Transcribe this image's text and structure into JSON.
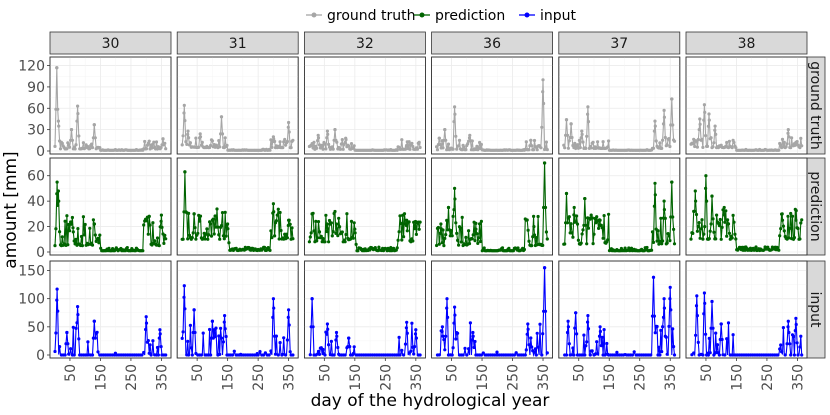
{
  "chart_data": {
    "type": "line",
    "title": "",
    "xlabel": "day of the hydrological year",
    "ylabel": "amount [mm]",
    "xlim": [
      1,
      365
    ],
    "x_ticks": [
      50,
      150,
      250,
      350
    ],
    "columns": [
      "30",
      "31",
      "32",
      "36",
      "37",
      "38"
    ],
    "rows": [
      {
        "name": "ground truth",
        "ylim": [
          0,
          125
        ],
        "y_ticks": [
          0,
          30,
          60,
          90,
          120
        ]
      },
      {
        "name": "prediction",
        "ylim": [
          0,
          70
        ],
        "y_ticks": [
          0,
          20,
          40,
          60
        ]
      },
      {
        "name": "input",
        "ylim": [
          0,
          158
        ],
        "y_ticks": [
          0,
          50,
          100,
          150
        ]
      }
    ],
    "legend": {
      "position": "top",
      "entries": [
        {
          "label": "ground truth",
          "color": "#a6a6a6"
        },
        {
          "label": "prediction",
          "color": "#006400"
        },
        {
          "label": "input",
          "color": "#0000ff"
        }
      ]
    },
    "series_shape": {
      "ground truth": {
        "30": {
          "peaks": [
            [
              7,
              117
            ],
            [
              12,
              42
            ],
            [
              55,
              30
            ],
            [
              75,
              63
            ],
            [
              130,
              37
            ],
            [
              320,
              5
            ],
            [
              355,
              17
            ]
          ],
          "base": 5
        },
        "31": {
          "peaks": [
            [
              8,
              64
            ],
            [
              20,
              28
            ],
            [
              60,
              24
            ],
            [
              130,
              48
            ],
            [
              300,
              20
            ],
            [
              350,
              40
            ]
          ],
          "base": 8
        },
        "32": {
          "peaks": [
            [
              30,
              22
            ],
            [
              60,
              28
            ],
            [
              85,
              30
            ],
            [
              120,
              18
            ],
            [
              320,
              8
            ],
            [
              360,
              10
            ]
          ],
          "base": 4
        },
        "36": {
          "peaks": [
            [
              10,
              18
            ],
            [
              28,
              30
            ],
            [
              60,
              62
            ],
            [
              110,
              22
            ],
            [
              310,
              15
            ],
            [
              350,
              100
            ]
          ],
          "base": 3
        },
        "37": {
          "peaks": [
            [
              10,
              44
            ],
            [
              25,
              38
            ],
            [
              60,
              28
            ],
            [
              80,
              62
            ],
            [
              300,
              42
            ],
            [
              330,
              57
            ],
            [
              355,
              73
            ]
          ],
          "base": 6
        },
        "38": {
          "peaks": [
            [
              30,
              45
            ],
            [
              45,
              65
            ],
            [
              60,
              52
            ],
            [
              80,
              35
            ],
            [
              320,
              30
            ],
            [
              345,
              12
            ]
          ],
          "base": 8
        }
      },
      "prediction": {
        "30": {
          "peaks": [
            [
              8,
              55
            ],
            [
              12,
              48
            ],
            [
              60,
              19
            ],
            [
              130,
              22
            ],
            [
              310,
              28
            ],
            [
              350,
              29
            ]
          ],
          "base": 5
        },
        "31": {
          "peaks": [
            [
              10,
              63
            ],
            [
              40,
              30
            ],
            [
              100,
              25
            ],
            [
              150,
              22
            ],
            [
              300,
              38
            ],
            [
              350,
              25
            ]
          ],
          "base": 10
        },
        "32": {
          "peaks": [
            [
              10,
              30
            ],
            [
              60,
              22
            ],
            [
              90,
              22
            ],
            [
              150,
              18
            ],
            [
              320,
              25
            ],
            [
              350,
              20
            ]
          ],
          "base": 8
        },
        "36": {
          "peaks": [
            [
              15,
              22
            ],
            [
              40,
              35
            ],
            [
              60,
              50
            ],
            [
              130,
              18
            ],
            [
              320,
              20
            ],
            [
              355,
              70
            ]
          ],
          "base": 5
        },
        "37": {
          "peaks": [
            [
              10,
              46
            ],
            [
              35,
              35
            ],
            [
              70,
              42
            ],
            [
              120,
              25
            ],
            [
              300,
              54
            ],
            [
              330,
              40
            ],
            [
              355,
              55
            ]
          ],
          "base": 6
        },
        "38": {
          "peaks": [
            [
              15,
              48
            ],
            [
              50,
              60
            ],
            [
              70,
              44
            ],
            [
              110,
              35
            ],
            [
              300,
              30
            ],
            [
              345,
              25
            ]
          ],
          "base": 10
        }
      },
      "input": {
        "30": {
          "peaks": [
            [
              8,
              117
            ],
            [
              40,
              40
            ],
            [
              75,
              86
            ],
            [
              130,
              60
            ],
            [
              300,
              68
            ],
            [
              345,
              45
            ]
          ],
          "base": 0
        },
        "31": {
          "peaks": [
            [
              8,
              123
            ],
            [
              40,
              80
            ],
            [
              100,
              60
            ],
            [
              140,
              70
            ],
            [
              300,
              100
            ],
            [
              350,
              80
            ]
          ],
          "base": 0
        },
        "32": {
          "peaks": [
            [
              10,
              100
            ],
            [
              60,
              55
            ],
            [
              90,
              40
            ],
            [
              130,
              30
            ],
            [
              320,
              58
            ],
            [
              350,
              45
            ]
          ],
          "base": 0
        },
        "36": {
          "peaks": [
            [
              20,
              50
            ],
            [
              35,
              100
            ],
            [
              60,
              85
            ],
            [
              120,
              40
            ],
            [
              300,
              55
            ],
            [
              355,
              155
            ]
          ],
          "base": 0
        },
        "37": {
          "peaks": [
            [
              15,
              60
            ],
            [
              40,
              75
            ],
            [
              80,
              70
            ],
            [
              120,
              50
            ],
            [
              295,
              138
            ],
            [
              330,
              100
            ],
            [
              350,
              120
            ]
          ],
          "base": 0
        },
        "38": {
          "peaks": [
            [
              20,
              105
            ],
            [
              45,
              110
            ],
            [
              70,
              95
            ],
            [
              100,
              55
            ],
            [
              320,
              60
            ],
            [
              345,
              65
            ]
          ],
          "base": 0
        }
      }
    }
  }
}
